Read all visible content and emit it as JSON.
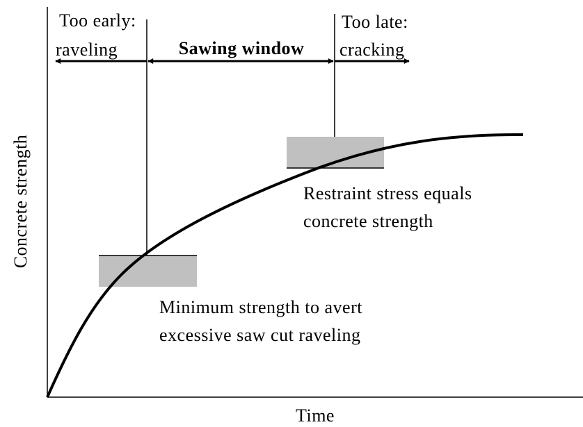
{
  "labels": {
    "too_early": "Too early:",
    "raveling": "raveling",
    "sawing_window": "Sawing window",
    "too_late": "Too late:",
    "cracking": "cracking",
    "restraint_1": "Restraint stress equals",
    "restraint_2": "concrete strength",
    "minimum_1": "Minimum strength to avert",
    "minimum_2": "excessive saw cut raveling",
    "y_axis": "Concrete strength",
    "x_axis": "Time"
  }
}
